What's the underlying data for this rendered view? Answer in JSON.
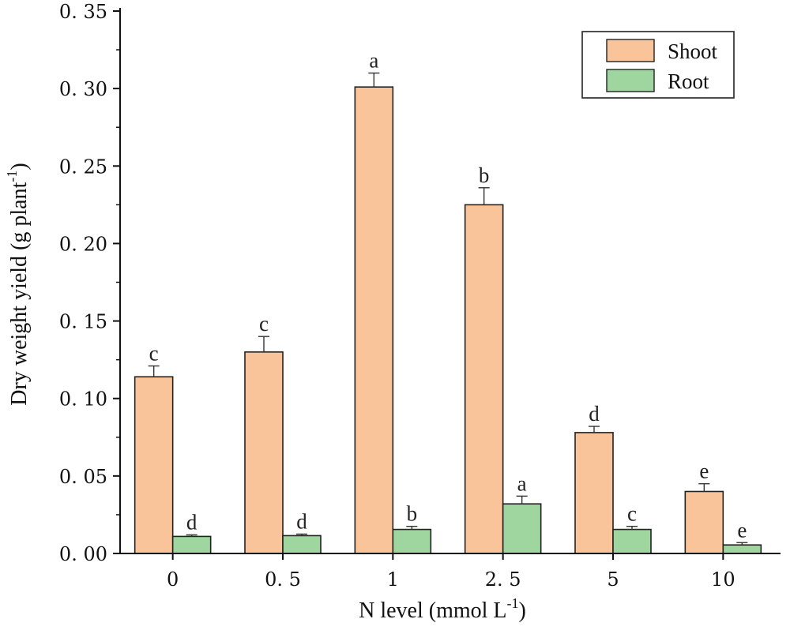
{
  "chart_data": {
    "type": "bar",
    "title": "",
    "xlabel": "N level (mmol L",
    "xlabel_sup": "-1",
    "xlabel_suffix": ")",
    "ylabel": "Dry weight yield (g plant",
    "ylabel_sup": "-1",
    "ylabel_suffix": ")",
    "ylim": [
      0,
      0.35
    ],
    "y_ticks": [
      0,
      0.05,
      0.1,
      0.15,
      0.2,
      0.25,
      0.3,
      0.35
    ],
    "y_tick_labels": [
      "0. 00",
      "0. 05",
      "0. 10",
      "0. 15",
      "0. 20",
      "0. 25",
      "0. 30",
      "0. 35"
    ],
    "categories": [
      "0",
      "0. 5",
      "1",
      "2. 5",
      "5",
      "10"
    ],
    "legend_position": "top-right",
    "series": [
      {
        "name": "Shoot",
        "color": "#FAC49A",
        "values": [
          0.114,
          0.13,
          0.301,
          0.225,
          0.078,
          0.04
        ],
        "errors": [
          0.007,
          0.01,
          0.009,
          0.011,
          0.004,
          0.005
        ],
        "labels": [
          "c",
          "c",
          "a",
          "b",
          "d",
          "e"
        ]
      },
      {
        "name": "Root",
        "color": "#9FD6A0",
        "values": [
          0.011,
          0.0115,
          0.0155,
          0.032,
          0.0155,
          0.0055
        ],
        "errors": [
          0.001,
          0.001,
          0.002,
          0.005,
          0.002,
          0.0015
        ],
        "labels": [
          "d",
          "d",
          "b",
          "a",
          "c",
          "e"
        ]
      }
    ]
  }
}
